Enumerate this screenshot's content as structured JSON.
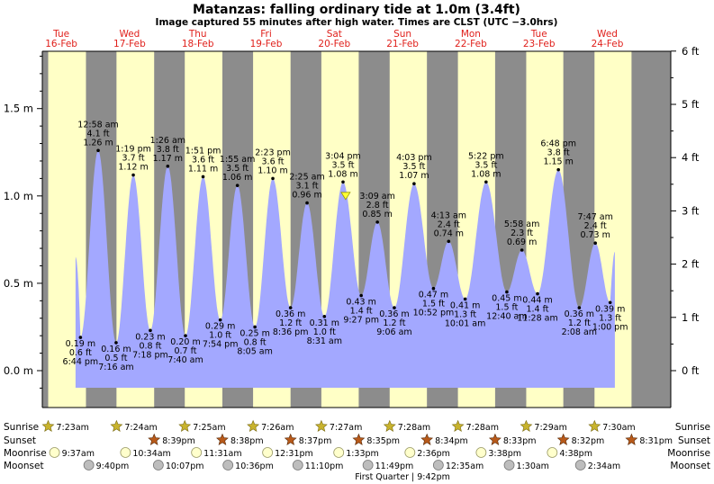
{
  "header": {
    "title": "Matanzas: falling  ordinary tide at 1.0m (3.4ft)",
    "subtitle": "Image captured 55 minutes after high water. Times are CLST (UTC −3.0hrs)"
  },
  "colors": {
    "day": "#ffffc6",
    "night": "#8c8c8c",
    "tide_fill": "#a3a8ff",
    "day_label": "#e0201b",
    "sunrise_star": "#c8b32d",
    "sunset_star": "#b85a1a",
    "moonrise": "#ffffcc",
    "moonset": "#bdbdbd"
  },
  "icons": {
    "sunrise": "star-gold-icon",
    "sunset": "star-brown-icon",
    "moonrise": "moon-circle-light-icon",
    "moonset": "moon-circle-grey-icon",
    "now_marker": "yellow-triangle-icon"
  },
  "chart_data": {
    "type": "area",
    "days": [
      {
        "dow": "Tue",
        "date": "16-Feb"
      },
      {
        "dow": "Wed",
        "date": "17-Feb"
      },
      {
        "dow": "Thu",
        "date": "18-Feb"
      },
      {
        "dow": "Fri",
        "date": "19-Feb"
      },
      {
        "dow": "Sat",
        "date": "20-Feb"
      },
      {
        "dow": "Sun",
        "date": "21-Feb"
      },
      {
        "dow": "Mon",
        "date": "22-Feb"
      },
      {
        "dow": "Tue",
        "date": "23-Feb"
      },
      {
        "dow": "Wed",
        "date": "24-Feb"
      }
    ],
    "y_left_unit": "m",
    "y_left_ticks": [
      0.0,
      0.5,
      1.0,
      1.5
    ],
    "y_left_tick_labels": [
      "0.0 m",
      "0.5 m",
      "1.0 m",
      "1.5 m"
    ],
    "y_right_unit": "ft",
    "y_right_ticks": [
      0,
      1,
      2,
      3,
      4,
      5,
      6
    ],
    "y_right_tick_labels": [
      "0 ft",
      "1 ft",
      "2 ft",
      "3 ft",
      "4 ft",
      "5 ft",
      "6 ft"
    ],
    "ylim_m": [
      -0.11,
      1.83
    ],
    "x_range_days": [
      0,
      9
    ],
    "tides": [
      {
        "type": "low",
        "day": 0,
        "time": "6:44 pm",
        "m": 0.19,
        "ft": 0.6
      },
      {
        "type": "high",
        "day": 1,
        "time": "12:58 am",
        "m": 1.26,
        "ft": 4.1
      },
      {
        "type": "low",
        "day": 1,
        "time": "7:16 am",
        "m": 0.16,
        "ft": 0.5
      },
      {
        "type": "high",
        "day": 1,
        "time": "1:19 pm",
        "m": 1.12,
        "ft": 3.7
      },
      {
        "type": "low",
        "day": 1,
        "time": "7:18 pm",
        "m": 0.23,
        "ft": 0.8
      },
      {
        "type": "high",
        "day": 2,
        "time": "1:26 am",
        "m": 1.17,
        "ft": 3.8
      },
      {
        "type": "low",
        "day": 2,
        "time": "7:40 am",
        "m": 0.2,
        "ft": 0.7
      },
      {
        "type": "high",
        "day": 2,
        "time": "1:51 pm",
        "m": 1.11,
        "ft": 3.6
      },
      {
        "type": "low",
        "day": 2,
        "time": "7:54 pm",
        "m": 0.29,
        "ft": 1.0
      },
      {
        "type": "high",
        "day": 3,
        "time": "1:55 am",
        "m": 1.06,
        "ft": 3.5
      },
      {
        "type": "low",
        "day": 3,
        "time": "8:05 am",
        "m": 0.25,
        "ft": 0.8
      },
      {
        "type": "high",
        "day": 3,
        "time": "2:23 pm",
        "m": 1.1,
        "ft": 3.6
      },
      {
        "type": "low",
        "day": 3,
        "time": "8:36 pm",
        "m": 0.36,
        "ft": 1.2
      },
      {
        "type": "high",
        "day": 4,
        "time": "2:25 am",
        "m": 0.96,
        "ft": 3.1
      },
      {
        "type": "low",
        "day": 4,
        "time": "8:31 am",
        "m": 0.31,
        "ft": 1.0
      },
      {
        "type": "high",
        "day": 4,
        "time": "3:04 pm",
        "m": 1.08,
        "ft": 3.5
      },
      {
        "type": "low",
        "day": 4,
        "time": "9:27 pm",
        "m": 0.43,
        "ft": 1.4
      },
      {
        "type": "high",
        "day": 5,
        "time": "3:09 am",
        "m": 0.85,
        "ft": 2.8
      },
      {
        "type": "low",
        "day": 5,
        "time": "9:06 am",
        "m": 0.36,
        "ft": 1.2
      },
      {
        "type": "high",
        "day": 5,
        "time": "4:03 pm",
        "m": 1.07,
        "ft": 3.5
      },
      {
        "type": "low",
        "day": 5,
        "time": "10:52 pm",
        "m": 0.47,
        "ft": 1.5
      },
      {
        "type": "high",
        "day": 6,
        "time": "4:13 am",
        "m": 0.74,
        "ft": 2.4
      },
      {
        "type": "low",
        "day": 6,
        "time": "10:01 am",
        "m": 0.41,
        "ft": 1.3
      },
      {
        "type": "high",
        "day": 6,
        "time": "5:22 pm",
        "m": 1.08,
        "ft": 3.5
      },
      {
        "type": "low",
        "day": 7,
        "time": "12:40 am",
        "m": 0.45,
        "ft": 1.5
      },
      {
        "type": "high",
        "day": 7,
        "time": "5:58 am",
        "m": 0.69,
        "ft": 2.3
      },
      {
        "type": "low",
        "day": 7,
        "time": "11:28 am",
        "m": 0.44,
        "ft": 1.4
      },
      {
        "type": "high",
        "day": 7,
        "time": "6:48 pm",
        "m": 1.15,
        "ft": 3.8
      },
      {
        "type": "low",
        "day": 8,
        "time": "2:08 am",
        "m": 0.36,
        "ft": 1.2
      },
      {
        "type": "high",
        "day": 8,
        "time": "7:47 am",
        "m": 0.73,
        "ft": 2.4
      },
      {
        "type": "low",
        "day": 8,
        "time": "1:00 pm",
        "m": 0.39,
        "ft": 1.3
      }
    ],
    "series_start": {
      "day": 0,
      "time": "5:00 pm",
      "m": 0.65
    },
    "series_end": {
      "day": 8,
      "time": "2:40 pm",
      "m": 0.68
    },
    "now": {
      "day": 4,
      "time": "3:59 pm",
      "m": 1.0
    },
    "daylight": [
      {
        "sunrise": "7:23am",
        "sunset": "8:40pm"
      },
      {
        "sunrise": "7:24am",
        "sunset": "8:39pm"
      },
      {
        "sunrise": "7:25am",
        "sunset": "8:38pm"
      },
      {
        "sunrise": "7:26am",
        "sunset": "8:37pm"
      },
      {
        "sunrise": "7:27am",
        "sunset": "8:35pm"
      },
      {
        "sunrise": "7:28am",
        "sunset": "8:34pm"
      },
      {
        "sunrise": "7:28am",
        "sunset": "8:33pm"
      },
      {
        "sunrise": "7:29am",
        "sunset": "8:32pm"
      },
      {
        "sunrise": "7:30am",
        "sunset": "8:31pm"
      }
    ]
  },
  "footer": {
    "row_labels": [
      "Sunrise",
      "Sunset",
      "Moonrise",
      "Moonset"
    ],
    "sunrise": [
      {
        "day": 0,
        "time": "7:23am"
      },
      {
        "day": 1,
        "time": "7:24am"
      },
      {
        "day": 2,
        "time": "7:25am"
      },
      {
        "day": 3,
        "time": "7:26am"
      },
      {
        "day": 4,
        "time": "7:27am"
      },
      {
        "day": 5,
        "time": "7:28am"
      },
      {
        "day": 6,
        "time": "7:28am"
      },
      {
        "day": 7,
        "time": "7:29am"
      },
      {
        "day": 8,
        "time": "7:30am"
      }
    ],
    "sunset": [
      {
        "day": 1,
        "time": "8:39pm"
      },
      {
        "day": 2,
        "time": "8:38pm"
      },
      {
        "day": 3,
        "time": "8:37pm"
      },
      {
        "day": 4,
        "time": "8:35pm"
      },
      {
        "day": 5,
        "time": "8:34pm"
      },
      {
        "day": 6,
        "time": "8:33pm"
      },
      {
        "day": 7,
        "time": "8:32pm"
      },
      {
        "day": 8,
        "time": "8:31pm"
      }
    ],
    "moonrise": [
      {
        "day": 0,
        "time": "9:37am"
      },
      {
        "day": 1,
        "time": "10:34am"
      },
      {
        "day": 2,
        "time": "11:31am"
      },
      {
        "day": 3,
        "time": "12:31pm"
      },
      {
        "day": 4,
        "time": "1:33pm"
      },
      {
        "day": 5,
        "time": "2:36pm"
      },
      {
        "day": 6,
        "time": "3:38pm"
      },
      {
        "day": 7,
        "time": "4:38pm"
      }
    ],
    "moonset": [
      {
        "day": 0,
        "time": "9:40pm"
      },
      {
        "day": 1,
        "time": "10:07pm"
      },
      {
        "day": 2,
        "time": "10:36pm"
      },
      {
        "day": 3,
        "time": "11:10pm"
      },
      {
        "day": 4,
        "time": "11:49pm"
      },
      {
        "day": 6,
        "time": "12:35am"
      },
      {
        "day": 7,
        "time": "1:30am"
      },
      {
        "day": 8,
        "time": "2:34am"
      }
    ],
    "moon_phase": "First Quarter | 9:42pm"
  }
}
